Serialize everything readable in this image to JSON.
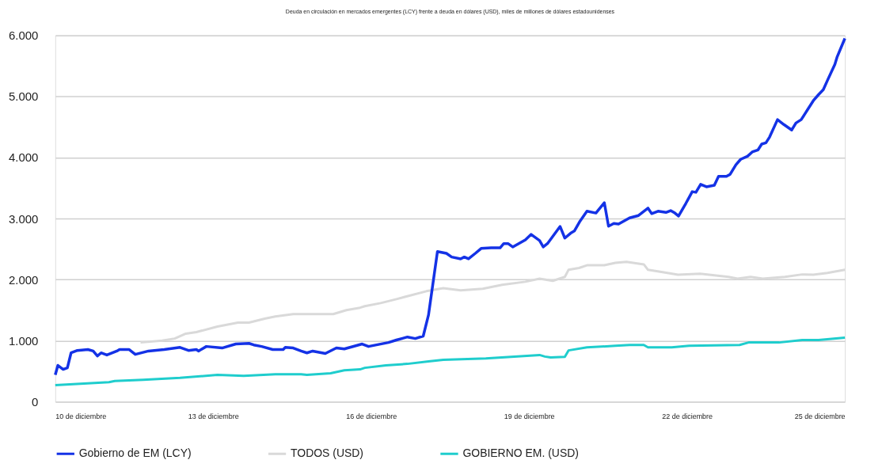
{
  "chart_data": {
    "type": "line",
    "title": "Deuda en circulación en mercados emergentes (LCY) frente a deuda en dólares (USD), miles de millones de dólares estadounidenses",
    "xlim": [
      10,
      25
    ],
    "ylim": [
      0,
      6000
    ],
    "xticks": [
      {
        "value": 10,
        "label": "10 de diciembre"
      },
      {
        "value": 13,
        "label": "13 de diciembre"
      },
      {
        "value": 16,
        "label": "16 de diciembre"
      },
      {
        "value": 19,
        "label": "19 de diciembre"
      },
      {
        "value": 22,
        "label": "22 de diciembre"
      },
      {
        "value": 25,
        "label": "25 de diciembre"
      }
    ],
    "yticks": [
      0,
      {
        "value": 1000,
        "label": "1.000"
      },
      {
        "value": 2000,
        "label": "2.000"
      },
      {
        "value": 3000,
        "label": "3.000"
      },
      {
        "value": 4000,
        "label": "4.000"
      },
      {
        "value": 5000,
        "label": "5.000"
      },
      {
        "value": 6000,
        "label": "6.000"
      }
    ],
    "grid": "y",
    "legend": "bottom",
    "marker": "none",
    "line_style": "solid",
    "series": [
      {
        "name": "TODOS (USD)",
        "color": "#d9d9d9",
        "x": [
          11.62,
          12.03,
          12.27,
          12.48,
          12.68,
          13.08,
          13.47,
          13.68,
          13.98,
          14.18,
          14.52,
          15.28,
          15.53,
          15.79,
          15.88,
          16.18,
          16.48,
          17.05,
          17.37,
          17.7,
          18.12,
          18.49,
          18.93,
          19.2,
          19.45,
          19.68,
          19.75,
          19.95,
          20.1,
          20.43,
          20.64,
          20.85,
          21.18,
          21.26,
          21.56,
          21.83,
          22.25,
          22.79,
          22.96,
          23.21,
          23.44,
          23.86,
          24.19,
          24.4,
          24.67,
          25.0
        ],
        "values": [
          970,
          1000,
          1035,
          1115,
          1140,
          1230,
          1295,
          1295,
          1360,
          1395,
          1435,
          1435,
          1500,
          1540,
          1565,
          1615,
          1680,
          1810,
          1860,
          1825,
          1850,
          1915,
          1965,
          2015,
          1980,
          2045,
          2160,
          2190,
          2235,
          2235,
          2275,
          2290,
          2250,
          2160,
          2120,
          2080,
          2095,
          2045,
          2015,
          2045,
          2015,
          2045,
          2085,
          2080,
          2110,
          2160
        ]
      },
      {
        "name": "GOBIERNO EM. (USD)",
        "color": "#1fcdcd",
        "x": [
          10.0,
          11.02,
          11.13,
          11.67,
          12.37,
          13.08,
          13.58,
          14.18,
          14.67,
          14.78,
          15.23,
          15.49,
          15.79,
          15.88,
          16.28,
          16.69,
          17.09,
          17.37,
          18.18,
          19.2,
          19.3,
          19.41,
          19.68,
          19.75,
          20.1,
          20.64,
          20.91,
          21.18,
          21.26,
          21.71,
          22.04,
          23.0,
          23.17,
          23.75,
          24.19,
          24.5,
          25.0
        ],
        "values": [
          270,
          320,
          340,
          360,
          390,
          440,
          425,
          450,
          450,
          440,
          465,
          515,
          530,
          555,
          595,
          620,
          660,
          685,
          710,
          765,
          740,
          725,
          735,
          840,
          890,
          915,
          930,
          930,
          890,
          890,
          915,
          930,
          970,
          970,
          1010,
          1010,
          1050
        ]
      },
      {
        "name": "Gobierno de EM (LCY)",
        "color": "#1432e6",
        "x": [
          10.0,
          10.05,
          10.15,
          10.23,
          10.3,
          10.42,
          10.62,
          10.72,
          10.8,
          10.87,
          10.98,
          11.17,
          11.22,
          11.4,
          11.52,
          11.77,
          12.07,
          12.37,
          12.53,
          12.68,
          12.72,
          12.87,
          13.17,
          13.43,
          13.68,
          13.77,
          13.92,
          14.13,
          14.33,
          14.37,
          14.52,
          14.67,
          14.78,
          14.89,
          15.13,
          15.34,
          15.49,
          15.83,
          15.95,
          16.33,
          16.48,
          16.69,
          16.84,
          16.99,
          17.09,
          17.26,
          17.43,
          17.53,
          17.7,
          17.77,
          17.85,
          17.98,
          18.09,
          18.28,
          18.45,
          18.52,
          18.6,
          18.69,
          18.93,
          19.04,
          19.2,
          19.27,
          19.35,
          19.59,
          19.68,
          19.79,
          19.86,
          19.97,
          20.1,
          20.27,
          20.43,
          20.51,
          20.61,
          20.7,
          20.91,
          21.08,
          21.26,
          21.33,
          21.45,
          21.6,
          21.69,
          21.77,
          21.84,
          21.98,
          22.1,
          22.17,
          22.26,
          22.37,
          22.52,
          22.6,
          22.75,
          22.82,
          22.93,
          23.02,
          23.15,
          23.24,
          23.35,
          23.42,
          23.5,
          23.57,
          23.72,
          23.84,
          23.99,
          24.07,
          24.17,
          24.4,
          24.5,
          24.59,
          24.67,
          24.81,
          24.85,
          25.0
        ],
        "values": [
          440,
          595,
          530,
          555,
          800,
          840,
          855,
          830,
          750,
          800,
          765,
          830,
          855,
          855,
          775,
          830,
          855,
          890,
          840,
          855,
          830,
          905,
          880,
          945,
          955,
          930,
          905,
          855,
          855,
          890,
          880,
          830,
          800,
          830,
          790,
          880,
          865,
          945,
          905,
          970,
          1010,
          1060,
          1035,
          1075,
          1420,
          2460,
          2430,
          2370,
          2340,
          2370,
          2340,
          2430,
          2510,
          2520,
          2520,
          2590,
          2590,
          2535,
          2650,
          2740,
          2640,
          2535,
          2590,
          2870,
          2680,
          2760,
          2795,
          2960,
          3120,
          3090,
          3260,
          2875,
          2920,
          2910,
          3010,
          3050,
          3170,
          3080,
          3120,
          3100,
          3130,
          3090,
          3040,
          3250,
          3440,
          3430,
          3560,
          3520,
          3545,
          3690,
          3690,
          3725,
          3880,
          3970,
          4020,
          4090,
          4125,
          4220,
          4240,
          4335,
          4620,
          4540,
          4450,
          4565,
          4620,
          4930,
          5030,
          5110,
          5265,
          5525,
          5640,
          5950
        ]
      }
    ]
  }
}
